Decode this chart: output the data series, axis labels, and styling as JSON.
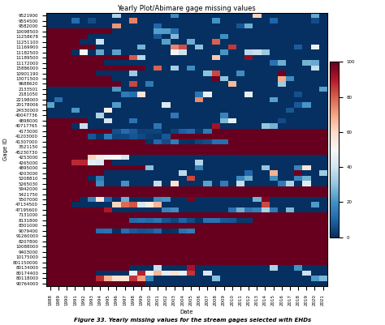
{
  "title": "Yearly Plot/Abimare gage missing values",
  "xlabel": "Date",
  "ylabel": "Gage ID",
  "years": [
    1988,
    1989,
    1990,
    1991,
    1992,
    1993,
    1994,
    1995,
    1996,
    1997,
    1998,
    1999,
    2000,
    2001,
    2002,
    2003,
    2004,
    2005,
    2006,
    2007,
    2008,
    2009,
    2010,
    2011,
    2012,
    2013,
    2014,
    2015,
    2016,
    2017,
    2018,
    2019,
    2020,
    2021
  ],
  "station_ids": [
    "9521900",
    "9554500",
    "9582000",
    "10098500",
    "11258678",
    "11251100",
    "11169900",
    "11182500",
    "11189500",
    "11172000",
    "15886000",
    "10901190",
    "13071500",
    "9688620",
    "2133501",
    "2181050",
    "22198000",
    "20178006",
    "24530000",
    "40047736",
    "4898000",
    "40717765",
    "4173000",
    "41203000",
    "41307000",
    "3521150",
    "45230730",
    "4253000",
    "4265000",
    "4895000",
    "4203000",
    "5208810",
    "5265030",
    "5942000",
    "5421750",
    "5507000",
    "47134500",
    "47195600",
    "7131000",
    "8131800",
    "8301000",
    "9079400",
    "91260000",
    "8207800",
    "10088000",
    "9403000",
    "10175000",
    "801150000",
    "80134000",
    "80174400",
    "80118000",
    "90764000"
  ],
  "colormap": "RdBu_r",
  "vmin": 0,
  "vmax": 100,
  "colorbar_ticks": [
    0,
    20,
    40,
    60,
    80,
    100
  ],
  "figure_caption": "Figure 33. Yearly missing values for the stream gages selected with EHDs",
  "title_fontsize": 6,
  "label_fontsize": 5,
  "tick_fontsize": 4,
  "red_value": 100,
  "blue_value": 0,
  "early_years_count": 34,
  "total_years": 34
}
